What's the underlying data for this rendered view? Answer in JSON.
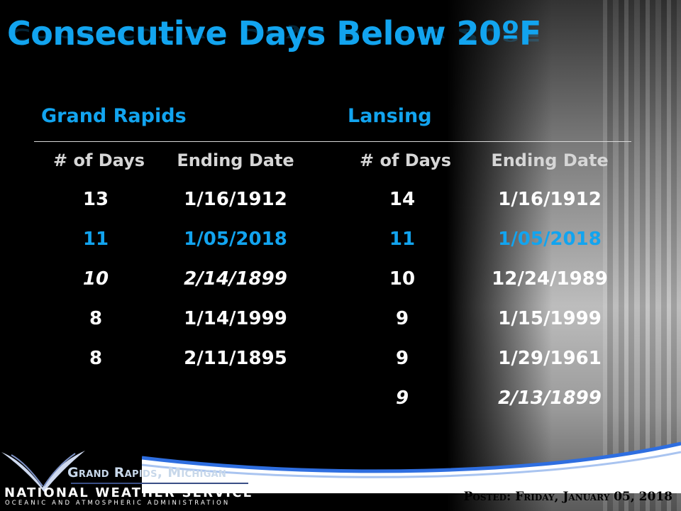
{
  "title": "Consecutive Days Below 20ºF",
  "stations": [
    {
      "name": "Grand Rapids",
      "headers": [
        "# of Days",
        "Ending Date"
      ],
      "rows": [
        {
          "days": "13",
          "date": "1/16/1912"
        },
        {
          "days": "11",
          "date": "1/05/2018"
        },
        {
          "days": "10",
          "date": "2/14/1899"
        },
        {
          "days": "8",
          "date": "1/14/1999"
        },
        {
          "days": "8",
          "date": "2/11/1895"
        }
      ]
    },
    {
      "name": "Lansing",
      "headers": [
        "# of Days",
        "Ending Date"
      ],
      "rows": [
        {
          "days": "14",
          "date": "1/16/1912"
        },
        {
          "days": "11",
          "date": "1/05/2018"
        },
        {
          "days": "10",
          "date": "12/24/1989"
        },
        {
          "days": "9",
          "date": "1/15/1999"
        },
        {
          "days": "9",
          "date": "1/29/1961"
        },
        {
          "days": "9",
          "date": "2/13/1899"
        }
      ]
    }
  ],
  "colors": {
    "accent": "#12a4ef",
    "text": "#ffffff",
    "header": "#d6d6d6"
  },
  "footer": {
    "office": "Grand Rapids, Michigan",
    "agency": "NATIONAL WEATHER SERVICE",
    "parent": "OCEANIC AND ATMOSPHERIC ADMINISTRATION",
    "posted": "Posted: Friday, January 05, 2018",
    "logo_icon": "noaa-bird-logo-icon"
  }
}
